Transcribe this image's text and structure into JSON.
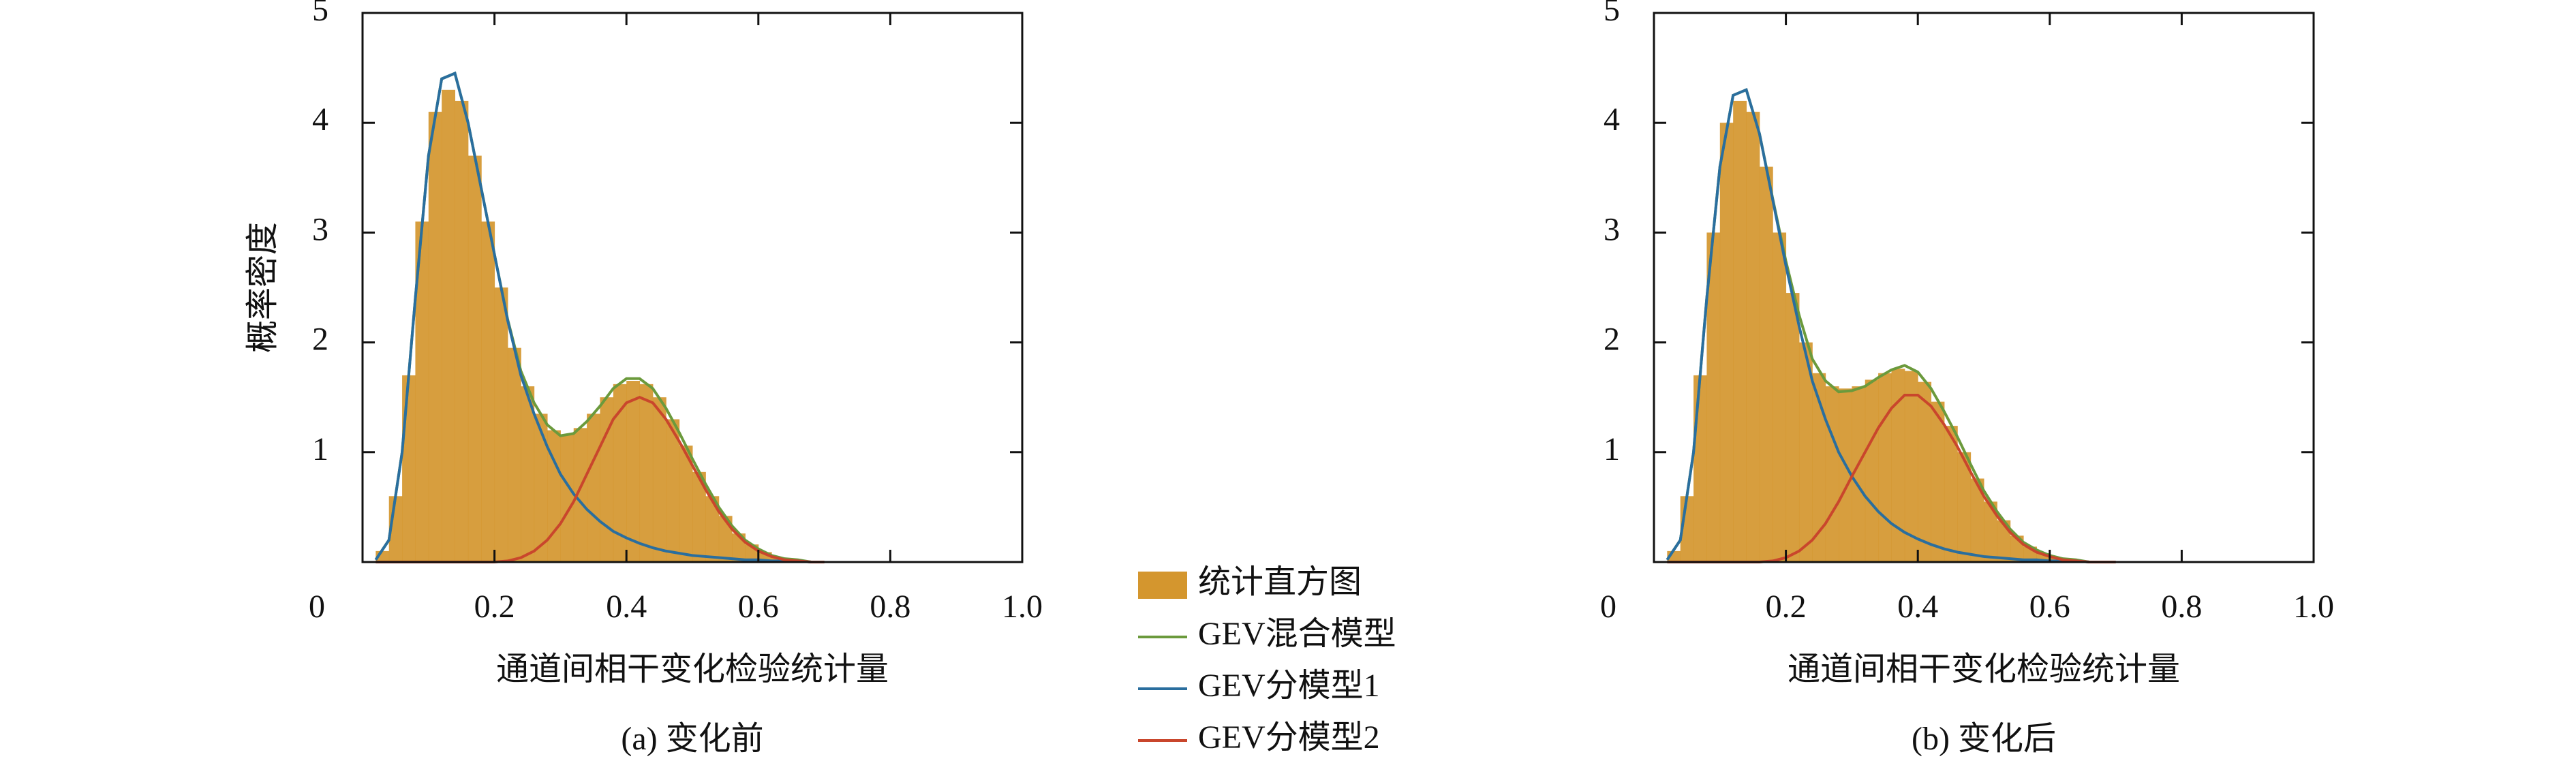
{
  "chart_data": [
    {
      "type": "histogram",
      "caption": "(a) 变化前",
      "xlabel": "通道间相干变化检验统计量",
      "ylabel": "概率密度",
      "hist_label": "统计直方图",
      "hist_color": "#d4962e",
      "bins": [
        0.02,
        0.04,
        0.06,
        0.08,
        0.1,
        0.12,
        0.14,
        0.16,
        0.18,
        0.2,
        0.22,
        0.24,
        0.26,
        0.28,
        0.3,
        0.32,
        0.34,
        0.36,
        0.38,
        0.4,
        0.42,
        0.44,
        0.46,
        0.48,
        0.5,
        0.52,
        0.54,
        0.56,
        0.58,
        0.6,
        0.62,
        0.64,
        0.66,
        0.68,
        0.7
      ],
      "counts": [
        0.1,
        0.6,
        1.7,
        3.1,
        4.1,
        4.3,
        4.2,
        3.7,
        3.1,
        2.5,
        1.95,
        1.6,
        1.35,
        1.2,
        1.16,
        1.22,
        1.35,
        1.5,
        1.62,
        1.65,
        1.62,
        1.5,
        1.3,
        1.06,
        0.82,
        0.6,
        0.42,
        0.26,
        0.16,
        0.09,
        0.04,
        0.02,
        0.01,
        0
      ],
      "x": [
        0.02,
        0.04,
        0.06,
        0.08,
        0.1,
        0.12,
        0.14,
        0.16,
        0.18,
        0.2,
        0.22,
        0.24,
        0.26,
        0.28,
        0.3,
        0.32,
        0.34,
        0.36,
        0.38,
        0.4,
        0.42,
        0.44,
        0.46,
        0.48,
        0.5,
        0.52,
        0.54,
        0.56,
        0.58,
        0.6,
        0.62,
        0.64,
        0.66,
        0.68,
        0.7
      ],
      "series": [
        {
          "name": "GEV混合模型",
          "color": "#6b9a3c",
          "values": [
            0.02,
            0.2,
            1.0,
            2.4,
            3.7,
            4.4,
            4.45,
            4.0,
            3.4,
            2.8,
            2.21,
            1.74,
            1.45,
            1.25,
            1.15,
            1.17,
            1.28,
            1.42,
            1.58,
            1.67,
            1.67,
            1.58,
            1.4,
            1.18,
            0.94,
            0.71,
            0.5,
            0.33,
            0.2,
            0.12,
            0.06,
            0.03,
            0.02,
            0,
            0
          ]
        },
        {
          "name": "GEV分模型1",
          "color": "#2a6e9e",
          "values": [
            0.02,
            0.2,
            1.0,
            2.4,
            3.7,
            4.4,
            4.45,
            4.0,
            3.4,
            2.8,
            2.2,
            1.7,
            1.35,
            1.05,
            0.8,
            0.62,
            0.48,
            0.37,
            0.28,
            0.22,
            0.17,
            0.13,
            0.1,
            0.08,
            0.06,
            0.05,
            0.04,
            0.03,
            0.02,
            0.02,
            0.01,
            0.01,
            0.01,
            0,
            0
          ]
        },
        {
          "name": "GEV分模型2",
          "color": "#c9462c",
          "values": [
            0,
            0,
            0,
            0,
            0,
            0,
            0,
            0,
            0,
            0,
            0.01,
            0.04,
            0.1,
            0.2,
            0.35,
            0.55,
            0.8,
            1.05,
            1.3,
            1.45,
            1.5,
            1.45,
            1.3,
            1.1,
            0.88,
            0.66,
            0.46,
            0.3,
            0.18,
            0.1,
            0.05,
            0.02,
            0.01,
            0,
            0
          ]
        }
      ],
      "xlim": [
        0,
        1
      ],
      "ylim": [
        0,
        5
      ],
      "xticks": [
        0,
        0.2,
        0.4,
        0.6,
        0.8,
        {
          "value": 1,
          "label": "1.0"
        }
      ],
      "yticks": [
        1,
        2,
        3,
        4,
        5
      ]
    },
    {
      "type": "histogram",
      "caption": "(b) 变化后",
      "xlabel": "通道间相干变化检验统计量",
      "ylabel": "概率密度",
      "hist_color": "#d4962e",
      "bins": [
        0.02,
        0.04,
        0.06,
        0.08,
        0.1,
        0.12,
        0.14,
        0.16,
        0.18,
        0.2,
        0.22,
        0.24,
        0.26,
        0.28,
        0.3,
        0.32,
        0.34,
        0.36,
        0.38,
        0.4,
        0.42,
        0.44,
        0.46,
        0.48,
        0.5,
        0.52,
        0.54,
        0.56,
        0.58,
        0.6,
        0.62,
        0.64,
        0.66,
        0.68,
        0.7
      ],
      "counts": [
        0.1,
        0.6,
        1.7,
        3.0,
        4.0,
        4.2,
        4.1,
        3.6,
        3.0,
        2.45,
        2.0,
        1.72,
        1.6,
        1.58,
        1.6,
        1.66,
        1.72,
        1.76,
        1.74,
        1.64,
        1.46,
        1.24,
        1.0,
        0.76,
        0.55,
        0.38,
        0.24,
        0.14,
        0.08,
        0.04,
        0.02,
        0.01,
        0,
        0
      ],
      "x": [
        0.02,
        0.04,
        0.06,
        0.08,
        0.1,
        0.12,
        0.14,
        0.16,
        0.18,
        0.2,
        0.22,
        0.24,
        0.26,
        0.28,
        0.3,
        0.32,
        0.34,
        0.36,
        0.38,
        0.4,
        0.42,
        0.44,
        0.46,
        0.48,
        0.5,
        0.52,
        0.54,
        0.56,
        0.58,
        0.6,
        0.62,
        0.64,
        0.66,
        0.68,
        0.7
      ],
      "series": [
        {
          "color": "#6b9a3c",
          "values": [
            0.02,
            0.2,
            1.0,
            2.4,
            3.6,
            4.25,
            4.3,
            3.9,
            3.31,
            2.74,
            2.25,
            1.85,
            1.65,
            1.55,
            1.56,
            1.6,
            1.68,
            1.75,
            1.79,
            1.73,
            1.58,
            1.37,
            1.14,
            0.89,
            0.65,
            0.46,
            0.3,
            0.18,
            0.11,
            0.06,
            0.03,
            0.02,
            0,
            0,
            0
          ]
        },
        {
          "color": "#2a6e9e",
          "values": [
            0.02,
            0.2,
            1.0,
            2.4,
            3.6,
            4.25,
            4.3,
            3.9,
            3.3,
            2.7,
            2.15,
            1.65,
            1.3,
            1.0,
            0.78,
            0.6,
            0.46,
            0.35,
            0.27,
            0.21,
            0.16,
            0.12,
            0.09,
            0.07,
            0.05,
            0.04,
            0.03,
            0.02,
            0.02,
            0.01,
            0.01,
            0.01,
            0,
            0,
            0
          ]
        },
        {
          "color": "#c9462c",
          "values": [
            0,
            0,
            0,
            0,
            0,
            0,
            0,
            0,
            0.01,
            0.04,
            0.1,
            0.2,
            0.35,
            0.55,
            0.78,
            1.0,
            1.22,
            1.4,
            1.52,
            1.52,
            1.42,
            1.25,
            1.05,
            0.82,
            0.6,
            0.42,
            0.27,
            0.16,
            0.09,
            0.05,
            0.02,
            0.01,
            0,
            0,
            0
          ]
        }
      ],
      "xlim": [
        0,
        1
      ],
      "ylim": [
        0,
        5
      ],
      "xticks": [
        0,
        0.2,
        0.4,
        0.6,
        0.8,
        {
          "value": 1,
          "label": "1.0"
        }
      ],
      "yticks": [
        1,
        2,
        3,
        4,
        5
      ]
    }
  ]
}
